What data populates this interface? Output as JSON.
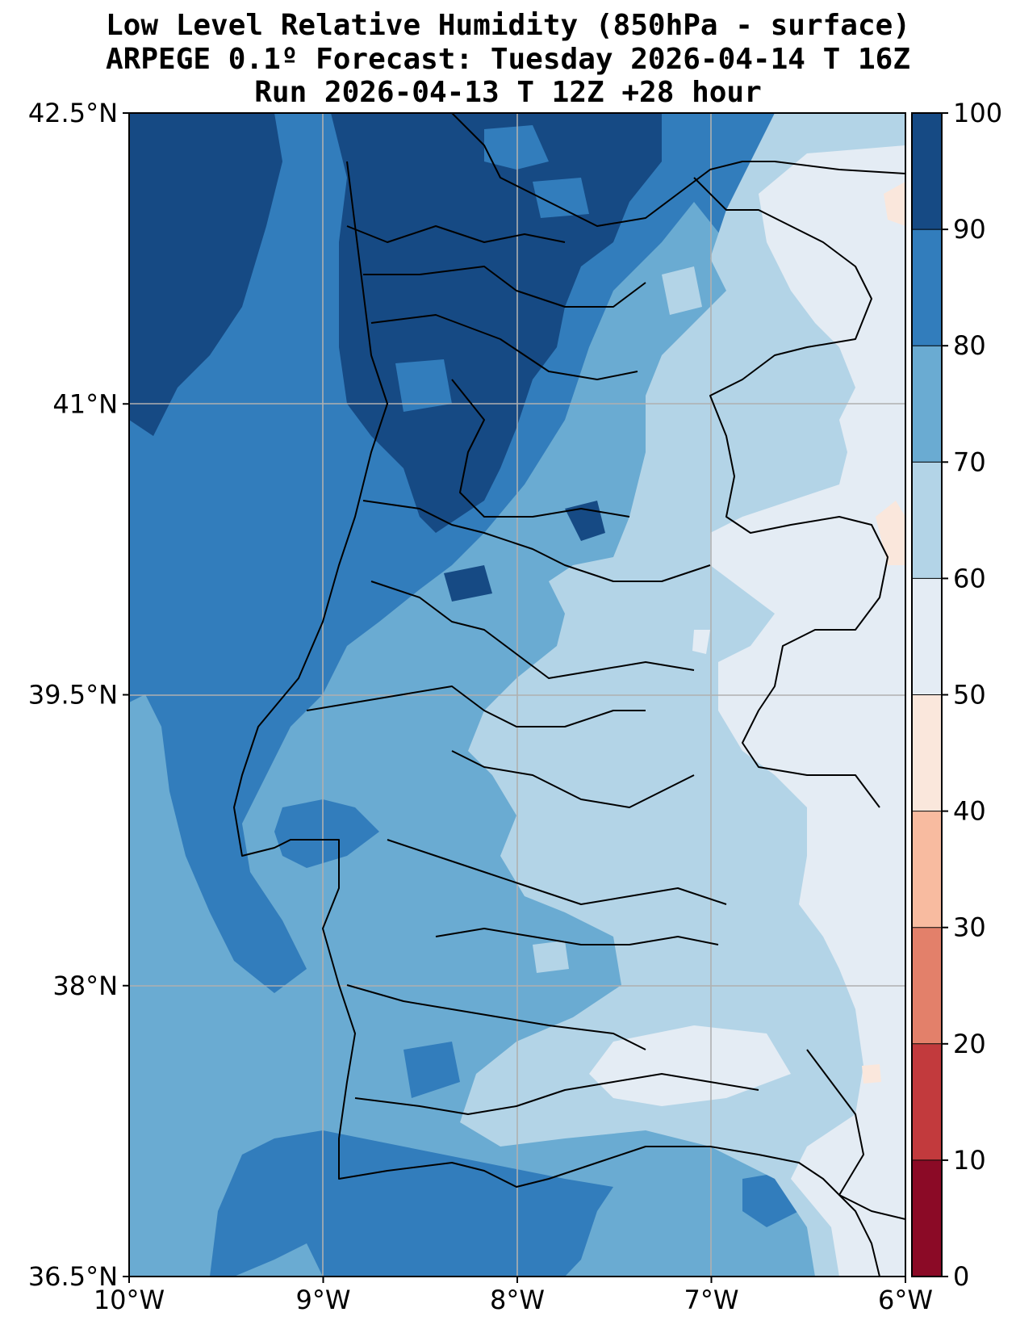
{
  "title": {
    "line1": "Low Level Relative Humidity (850hPa - surface)",
    "line2": "ARPEGE 0.1º Forecast: Tuesday 2026-04-14 T 16Z",
    "line3": "Run 2026-04-13 T 12Z +28 hour"
  },
  "map": {
    "lon_range": [
      -10,
      -6
    ],
    "lat_range": [
      36.5,
      42.5
    ],
    "x_ticks": [
      {
        "value": -10,
        "label": "10°W"
      },
      {
        "value": -9,
        "label": "9°W"
      },
      {
        "value": -8,
        "label": "8°W"
      },
      {
        "value": -7,
        "label": "7°W"
      },
      {
        "value": -6,
        "label": "6°W"
      }
    ],
    "y_ticks": [
      {
        "value": 42.5,
        "label": "42.5°N"
      },
      {
        "value": 41,
        "label": "41°N"
      },
      {
        "value": 39.5,
        "label": "39.5°N"
      },
      {
        "value": 38,
        "label": "38°N"
      },
      {
        "value": 36.5,
        "label": "36.5°N"
      }
    ],
    "grid": true
  },
  "colorbar": {
    "levels": [
      0,
      10,
      20,
      30,
      40,
      50,
      60,
      70,
      80,
      90,
      100
    ],
    "colors": [
      "#8b0a26",
      "#c23a3d",
      "#e3806a",
      "#f8bba0",
      "#fae7dc",
      "#e4ecf4",
      "#b3d4e7",
      "#6aabd2",
      "#327dbc",
      "#164a84"
    ],
    "labels": [
      "0",
      "10",
      "20",
      "30",
      "40",
      "50",
      "60",
      "70",
      "80",
      "90",
      "100"
    ]
  },
  "legend_colors": {
    "rh_90_100": "#164a84",
    "rh_80_90": "#327dbc",
    "rh_70_80": "#6aabd2",
    "rh_60_70": "#b3d4e7",
    "rh_50_60": "#e4ecf4",
    "rh_40_50": "#fae7dc",
    "border": "#000000",
    "grid": "#b0b0b0"
  }
}
